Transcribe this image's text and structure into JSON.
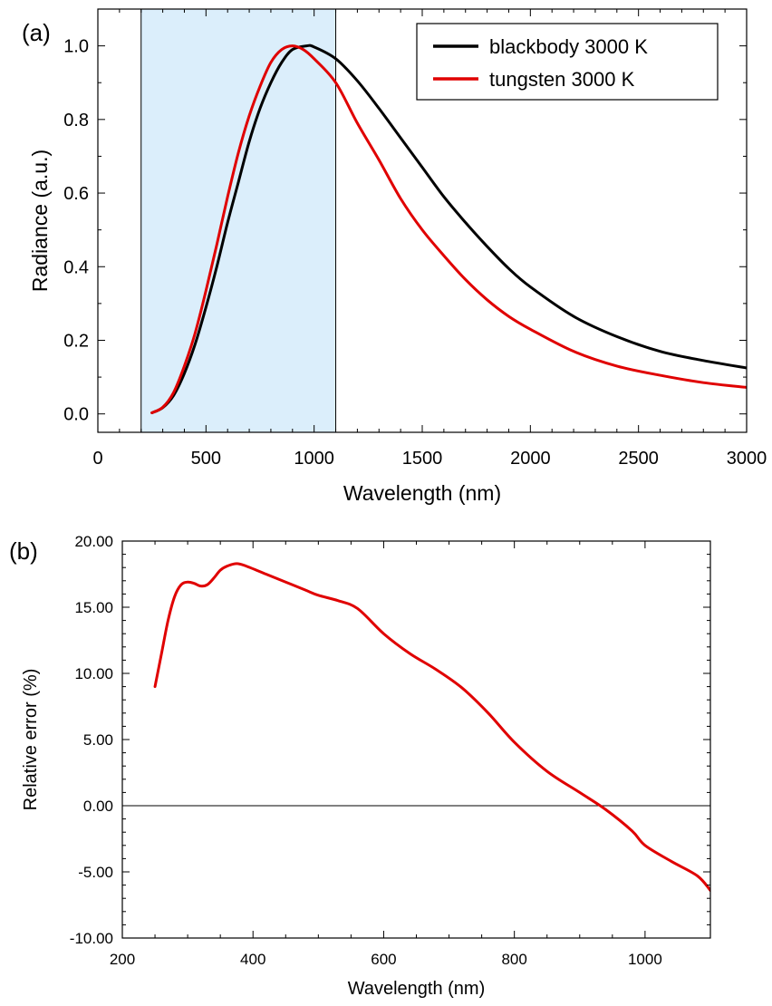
{
  "chart_data": [
    {
      "type": "line",
      "panel_label": "(a)",
      "xlabel": "Wavelength (nm)",
      "ylabel": "Radiance (a.u.)",
      "xlim": [
        0,
        3000
      ],
      "ylim": [
        -0.05,
        1.1
      ],
      "xticks": [
        0,
        500,
        1000,
        1500,
        2000,
        2500,
        3000
      ],
      "xtick_labels": [
        "0",
        "500",
        "1000",
        "1500",
        "2000",
        "2500",
        "3000"
      ],
      "yticks": [
        0.0,
        0.2,
        0.4,
        0.6,
        0.8,
        1.0
      ],
      "ytick_labels": [
        "0.0",
        "0.2",
        "0.4",
        "0.6",
        "0.8",
        "1.0"
      ],
      "grid": false,
      "legend_position": "top-right",
      "shaded_region": {
        "x_range": [
          200,
          1100
        ],
        "color": "#dbeefb"
      },
      "series": [
        {
          "name": "blackbody 3000 K",
          "color": "#000000",
          "x": [
            250,
            300,
            350,
            400,
            450,
            500,
            550,
            600,
            650,
            700,
            750,
            800,
            850,
            900,
            966,
            1000,
            1100,
            1200,
            1300,
            1400,
            1500,
            1600,
            1700,
            1800,
            1900,
            2000,
            2200,
            2400,
            2600,
            2800,
            3000
          ],
          "y": [
            0.003,
            0.017,
            0.05,
            0.11,
            0.19,
            0.29,
            0.4,
            0.52,
            0.63,
            0.74,
            0.83,
            0.9,
            0.955,
            0.99,
            1.0,
            0.997,
            0.965,
            0.905,
            0.83,
            0.75,
            0.67,
            0.59,
            0.52,
            0.455,
            0.395,
            0.345,
            0.265,
            0.21,
            0.17,
            0.145,
            0.125
          ]
        },
        {
          "name": "tungsten 3000 K",
          "color": "#e00000",
          "x": [
            250,
            300,
            350,
            400,
            450,
            500,
            550,
            600,
            650,
            700,
            750,
            800,
            850,
            900,
            950,
            1000,
            1100,
            1200,
            1300,
            1400,
            1500,
            1600,
            1700,
            1800,
            1900,
            2000,
            2200,
            2400,
            2600,
            2800,
            3000
          ],
          "y": [
            0.003,
            0.018,
            0.058,
            0.13,
            0.22,
            0.335,
            0.46,
            0.59,
            0.71,
            0.81,
            0.89,
            0.955,
            0.99,
            1.0,
            0.99,
            0.965,
            0.9,
            0.79,
            0.69,
            0.585,
            0.5,
            0.43,
            0.365,
            0.31,
            0.265,
            0.23,
            0.17,
            0.13,
            0.105,
            0.085,
            0.072
          ]
        }
      ]
    },
    {
      "type": "line",
      "panel_label": "(b)",
      "xlabel": "Wavelength (nm)",
      "ylabel": "Relative error (%)",
      "xlim": [
        200,
        1100
      ],
      "ylim": [
        -10,
        20
      ],
      "xticks": [
        200,
        400,
        600,
        800,
        1000
      ],
      "xtick_labels": [
        "200",
        "400",
        "600",
        "800",
        "1000"
      ],
      "yticks": [
        -10,
        -5,
        0,
        5,
        10,
        15,
        20
      ],
      "ytick_labels": [
        "-10.00",
        "-5.00",
        "0.00",
        "5.00",
        "10.00",
        "15.00",
        "20.00"
      ],
      "grid": false,
      "reference_line_y": 0,
      "series": [
        {
          "color": "#e00000",
          "x": [
            250,
            260,
            270,
            280,
            290,
            300,
            310,
            320,
            330,
            340,
            350,
            360,
            375,
            390,
            420,
            450,
            480,
            500,
            530,
            560,
            600,
            640,
            680,
            720,
            760,
            800,
            850,
            900,
            940,
            980,
            1000,
            1040,
            1080,
            1100
          ],
          "y": [
            9.0,
            11.5,
            14.0,
            15.8,
            16.7,
            16.9,
            16.8,
            16.6,
            16.7,
            17.2,
            17.8,
            18.1,
            18.3,
            18.1,
            17.5,
            16.9,
            16.3,
            15.9,
            15.5,
            14.9,
            13.0,
            11.5,
            10.3,
            8.9,
            7.0,
            4.8,
            2.6,
            1.0,
            -0.3,
            -1.9,
            -3.0,
            -4.2,
            -5.3,
            -6.4
          ]
        }
      ]
    }
  ]
}
